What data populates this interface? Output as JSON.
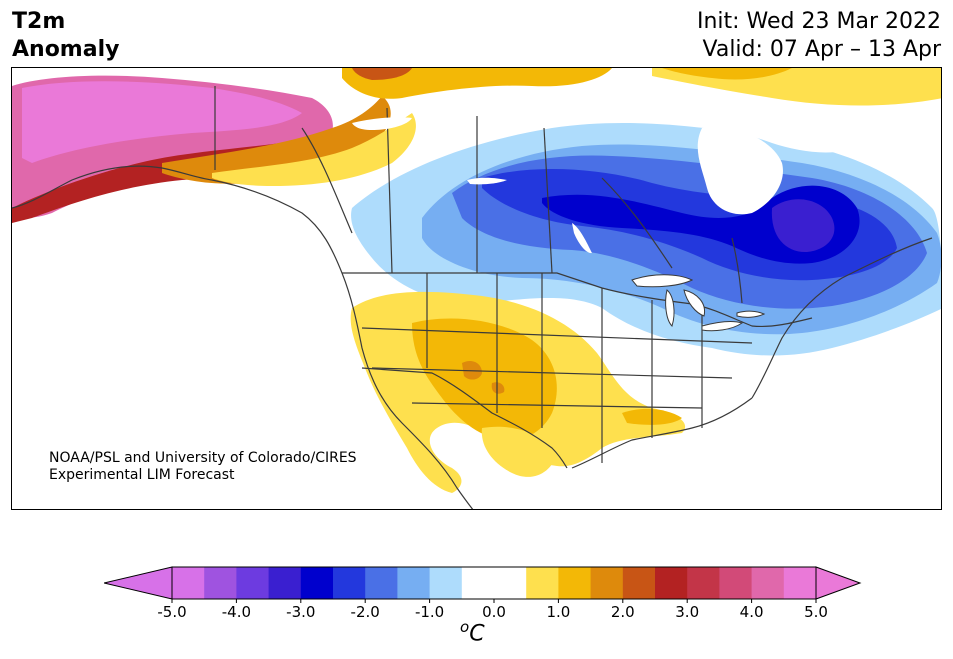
{
  "title": {
    "line1": "T2m",
    "line2": "Anomaly"
  },
  "dates": {
    "init": "Init: Wed 23 Mar 2022",
    "valid": "Valid: 07 Apr – 13 Apr"
  },
  "credit": {
    "line1": "NOAA/PSL and University of Colorado/CIRES",
    "line2": "Experimental LIM Forecast"
  },
  "colorbar": {
    "unit": "oC",
    "ticks": [
      "-5.0",
      "-4.0",
      "-3.0",
      "-2.0",
      "-1.0",
      "0.0",
      "1.0",
      "2.0",
      "3.0",
      "4.0",
      "5.0"
    ],
    "min": -5.0,
    "max": 5.0,
    "step": 0.5,
    "extend": "both",
    "colors": [
      "#d771e8",
      "#9f53e0",
      "#6d3be0",
      "#3a1fd0",
      "#0000cd",
      "#2338dd",
      "#4a70e6",
      "#76aef2",
      "#aedcfc",
      "#ffffff",
      "#ffffff",
      "#fee04e",
      "#f3b806",
      "#de8a0c",
      "#c85515",
      "#b32222",
      "#c33548",
      "#d24a78",
      "#e068ab",
      "#ea79d8"
    ]
  }
}
